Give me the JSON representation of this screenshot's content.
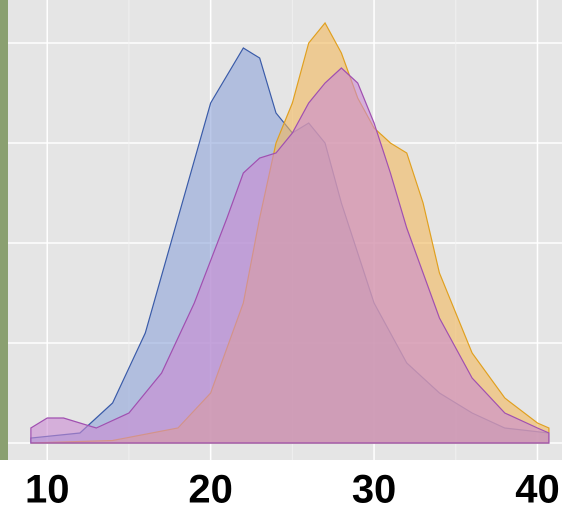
{
  "chart_data": {
    "type": "density",
    "xlim": [
      7.6,
      41.5
    ],
    "xticks": [
      10,
      20,
      30,
      40
    ],
    "xminor": [
      15,
      25,
      35
    ],
    "ylim": [
      0,
      0.09
    ],
    "yticks": [
      0,
      0.02,
      0.04,
      0.06,
      0.08
    ],
    "grid": true,
    "series": [
      {
        "color": "#3a5ba8",
        "fill": "#8ea4d8",
        "x": [
          9,
          12,
          14,
          16,
          18,
          20,
          22,
          23,
          24,
          25,
          26,
          27,
          28,
          30,
          32,
          34,
          36,
          38,
          40.7
        ],
        "values": [
          0.001,
          0.002,
          0.008,
          0.022,
          0.045,
          0.068,
          0.079,
          0.077,
          0.066,
          0.062,
          0.064,
          0.06,
          0.048,
          0.028,
          0.016,
          0.01,
          0.006,
          0.003,
          0.002
        ]
      },
      {
        "color": "#e0a020",
        "fill": "#f2b85c",
        "x": [
          9,
          14,
          18,
          20,
          22,
          23,
          24,
          25,
          26,
          27,
          28,
          29,
          30,
          31,
          32,
          33,
          34,
          36,
          38,
          40,
          40.7
        ],
        "values": [
          0,
          0.0005,
          0.003,
          0.01,
          0.028,
          0.045,
          0.06,
          0.068,
          0.08,
          0.084,
          0.078,
          0.069,
          0.063,
          0.06,
          0.058,
          0.048,
          0.034,
          0.018,
          0.009,
          0.004,
          0.003
        ]
      },
      {
        "color": "#a050b0",
        "fill": "#c98ad2",
        "x": [
          9,
          10,
          11,
          13,
          15,
          17,
          19,
          21,
          22,
          23,
          24,
          25,
          26,
          27,
          28,
          29,
          30,
          31,
          32,
          34,
          36,
          38,
          40,
          40.7
        ],
        "values": [
          0.003,
          0.005,
          0.005,
          0.003,
          0.006,
          0.014,
          0.028,
          0.045,
          0.054,
          0.057,
          0.058,
          0.062,
          0.068,
          0.072,
          0.075,
          0.072,
          0.064,
          0.054,
          0.043,
          0.025,
          0.013,
          0.006,
          0.003,
          0.002
        ]
      }
    ]
  }
}
